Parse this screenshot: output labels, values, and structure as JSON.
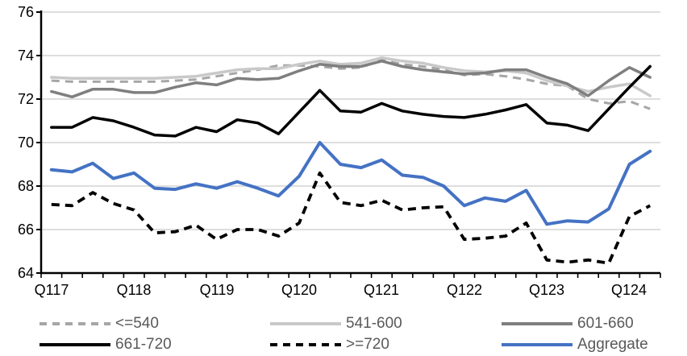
{
  "chart_data": {
    "type": "line",
    "title": "",
    "xlabel": "",
    "ylabel": "",
    "ylim": [
      64,
      76
    ],
    "y_ticks": [
      64,
      66,
      68,
      70,
      72,
      74,
      76
    ],
    "x_tick_labels": [
      "Q117",
      "Q118",
      "Q119",
      "Q120",
      "Q121",
      "Q122",
      "Q123",
      "Q124"
    ],
    "categories": [
      "Q117",
      "Q217",
      "Q317",
      "Q417",
      "Q118",
      "Q218",
      "Q318",
      "Q418",
      "Q119",
      "Q219",
      "Q319",
      "Q419",
      "Q120",
      "Q220",
      "Q320",
      "Q420",
      "Q121",
      "Q221",
      "Q321",
      "Q421",
      "Q122",
      "Q222",
      "Q322",
      "Q422",
      "Q123",
      "Q223",
      "Q323",
      "Q423",
      "Q124",
      "Q224"
    ],
    "grid": "horizontal",
    "legend_position": "bottom",
    "colors": {
      "gridline": "#d9d9d9",
      "axis": "#000000",
      "axis_text": "#000000",
      "legend_text": "#595959"
    },
    "series": [
      {
        "name": "<=540",
        "color": "#a6a6a6",
        "dash": "dashed",
        "width": 3,
        "values": [
          72.85,
          72.8,
          72.8,
          72.8,
          72.8,
          72.8,
          72.85,
          72.9,
          73.05,
          73.2,
          73.35,
          73.55,
          73.55,
          73.5,
          73.4,
          73.45,
          73.8,
          73.6,
          73.5,
          73.35,
          73.1,
          73.15,
          73.05,
          72.9,
          72.7,
          72.6,
          72.0,
          71.8,
          71.9,
          71.55
        ]
      },
      {
        "name": "541-600",
        "color": "#c9c9c9",
        "dash": "solid",
        "width": 3.5,
        "values": [
          73.0,
          72.95,
          72.95,
          72.95,
          72.95,
          72.95,
          73.0,
          73.05,
          73.2,
          73.35,
          73.4,
          73.4,
          73.6,
          73.75,
          73.6,
          73.65,
          73.9,
          73.75,
          73.65,
          73.45,
          73.3,
          73.25,
          73.3,
          73.2,
          72.85,
          72.6,
          72.35,
          72.55,
          72.7,
          72.15
        ]
      },
      {
        "name": "601-660",
        "color": "#7f7f7f",
        "dash": "solid",
        "width": 3.5,
        "values": [
          72.35,
          72.1,
          72.45,
          72.45,
          72.3,
          72.3,
          72.55,
          72.75,
          72.65,
          72.95,
          72.9,
          72.95,
          73.3,
          73.6,
          73.5,
          73.5,
          73.75,
          73.5,
          73.35,
          73.25,
          73.15,
          73.2,
          73.35,
          73.35,
          73.0,
          72.7,
          72.15,
          72.85,
          73.45,
          73.0
        ]
      },
      {
        "name": "661-720",
        "color": "#000000",
        "dash": "solid",
        "width": 3.5,
        "values": [
          70.7,
          70.7,
          71.15,
          71.0,
          70.7,
          70.35,
          70.3,
          70.7,
          70.5,
          71.05,
          70.9,
          70.4,
          71.4,
          72.4,
          71.45,
          71.4,
          71.8,
          71.45,
          71.3,
          71.2,
          71.15,
          71.3,
          71.5,
          71.75,
          70.9,
          70.8,
          70.55,
          71.55,
          72.55,
          73.5
        ]
      },
      {
        "name": ">=720",
        "color": "#000000",
        "dash": "dashed",
        "width": 3.8,
        "values": [
          67.15,
          67.1,
          67.7,
          67.2,
          66.9,
          65.85,
          65.9,
          66.2,
          65.55,
          66.0,
          66.0,
          65.7,
          66.3,
          68.6,
          67.25,
          67.1,
          67.35,
          66.9,
          67.0,
          67.05,
          65.55,
          65.6,
          65.7,
          66.3,
          64.6,
          64.5,
          64.6,
          64.45,
          66.6,
          67.1
        ]
      },
      {
        "name": "Aggregate",
        "color": "#4472c4",
        "dash": "solid",
        "width": 4,
        "values": [
          68.75,
          68.65,
          69.05,
          68.35,
          68.6,
          67.9,
          67.85,
          68.1,
          67.9,
          68.2,
          67.9,
          67.55,
          68.45,
          70.0,
          69.0,
          68.85,
          69.2,
          68.5,
          68.4,
          68.0,
          67.1,
          67.45,
          67.3,
          67.8,
          66.25,
          66.4,
          66.35,
          66.95,
          69.0,
          69.6
        ]
      }
    ]
  }
}
